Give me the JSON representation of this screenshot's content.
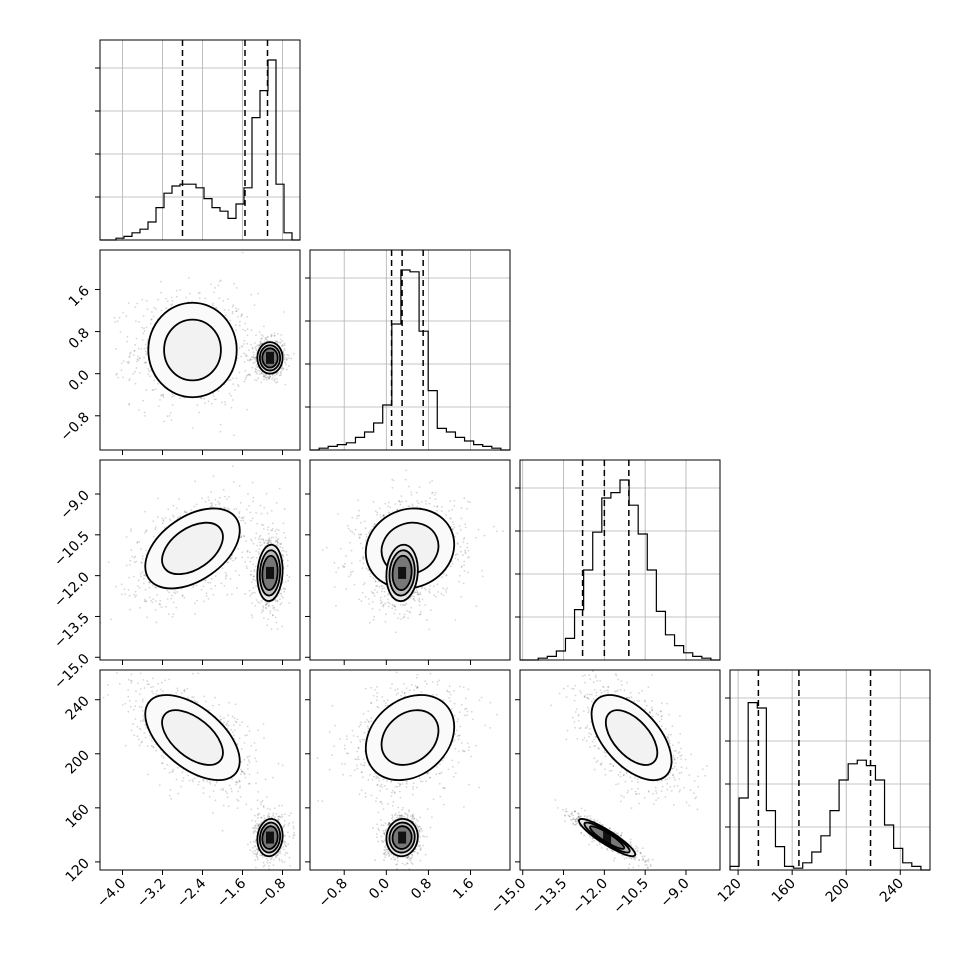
{
  "chart_data": {
    "type": "corner",
    "params": [
      {
        "ticks": [
          -4.0,
          -3.2,
          -2.4,
          -1.6,
          -0.8
        ],
        "range": [
          -4.45,
          -0.45
        ],
        "quantiles": [
          -2.8,
          -1.55,
          -1.1
        ]
      },
      {
        "ticks": [
          -0.8,
          0.0,
          0.8,
          1.6
        ],
        "range": [
          -1.45,
          2.35
        ],
        "quantiles": [
          0.1,
          0.3,
          0.7
        ]
      },
      {
        "ticks": [
          -15.0,
          -13.5,
          -12.0,
          -10.5,
          -9.0
        ],
        "range": [
          -15.1,
          -7.75
        ],
        "quantiles": [
          -12.8,
          -12.0,
          -11.1
        ]
      },
      {
        "ticks": [
          120,
          160,
          200,
          240
        ],
        "range": [
          114,
          262
        ],
        "quantiles": [
          135,
          165,
          218
        ]
      }
    ],
    "tick_labels": [
      [
        "−4.0",
        "−3.2",
        "−2.4",
        "−1.6",
        "−0.8"
      ],
      [
        "−0.8",
        "0.0",
        "0.8",
        "1.6"
      ],
      [
        "−15.0",
        "−13.5",
        "−12.0",
        "−10.5",
        "−9.0"
      ],
      [
        "120",
        "160",
        "200",
        "240"
      ]
    ],
    "histograms": [
      [
        0.0,
        0.0,
        0.01,
        0.02,
        0.04,
        0.06,
        0.1,
        0.18,
        0.26,
        0.3,
        0.31,
        0.31,
        0.29,
        0.23,
        0.18,
        0.16,
        0.12,
        0.2,
        0.29,
        0.68,
        0.83,
        1.0,
        0.31,
        0.04,
        0.0
      ],
      [
        0.0,
        0.01,
        0.02,
        0.03,
        0.04,
        0.07,
        0.1,
        0.15,
        0.25,
        0.7,
        1.0,
        0.99,
        0.66,
        0.33,
        0.12,
        0.1,
        0.07,
        0.05,
        0.03,
        0.02,
        0.01,
        0.0
      ],
      [
        0.0,
        0.0,
        0.01,
        0.02,
        0.05,
        0.12,
        0.28,
        0.5,
        0.71,
        0.9,
        0.93,
        1.0,
        0.86,
        0.7,
        0.5,
        0.27,
        0.14,
        0.08,
        0.04,
        0.02,
        0.01,
        0.0
      ],
      [
        0.02,
        0.4,
        0.93,
        0.9,
        0.33,
        0.13,
        0.02,
        0.01,
        0.04,
        0.1,
        0.19,
        0.33,
        0.5,
        0.59,
        0.61,
        0.58,
        0.5,
        0.25,
        0.12,
        0.04,
        0.02,
        0.0
      ]
    ],
    "modes": [
      [
        [
          -2.6,
          0.45,
          -11.0,
          212,
          0.62
        ],
        [
          -1.05,
          0.3,
          -11.9,
          138,
          0.38
        ]
      ]
    ],
    "grid": true,
    "layout": "lower-triangular 4x4"
  }
}
